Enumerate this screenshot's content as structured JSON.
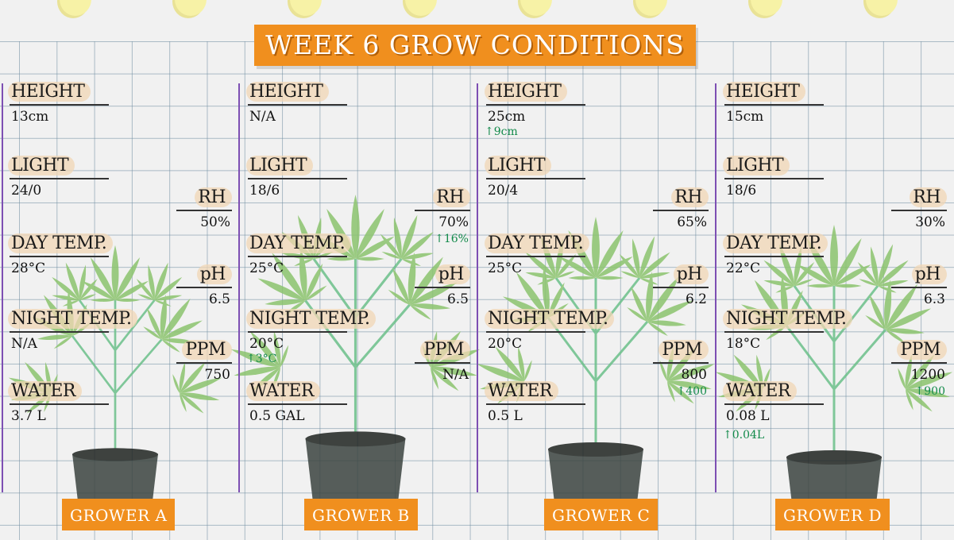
{
  "title": "WEEK 6 GROW CONDITIONS",
  "colors": {
    "accent": "#f08f1e",
    "divider": "#7d4fb3",
    "delta": "#128a4a",
    "pin": "#f7f2a6"
  },
  "columns": [
    {
      "grower": "GROWER A",
      "left": [
        {
          "label": "HEIGHT",
          "value": "13cm",
          "delta": ""
        },
        {
          "label": "LIGHT",
          "value": "24/0",
          "delta": ""
        },
        {
          "label": "DAY TEMP.",
          "value": "28°C",
          "delta": ""
        },
        {
          "label": "NIGHT TEMP.",
          "value": "N/A",
          "delta": ""
        },
        {
          "label": "WATER",
          "value": "3.7 L",
          "delta": ""
        }
      ],
      "right": [
        {
          "label": "RH",
          "value": "50%",
          "delta": ""
        },
        {
          "label": "pH",
          "value": "6.5",
          "delta": ""
        },
        {
          "label": "PPM",
          "value": "750",
          "delta": ""
        }
      ]
    },
    {
      "grower": "GROWER B",
      "left": [
        {
          "label": "HEIGHT",
          "value": "N/A",
          "delta": ""
        },
        {
          "label": "LIGHT",
          "value": "18/6",
          "delta": ""
        },
        {
          "label": "DAY TEMP.",
          "value": "25°C",
          "delta": ""
        },
        {
          "label": "NIGHT TEMP.",
          "value": "20°C",
          "delta": "↑3°C"
        },
        {
          "label": "WATER",
          "value": "0.5 GAL",
          "delta": ""
        }
      ],
      "right": [
        {
          "label": "RH",
          "value": "70%",
          "delta": "↑16%"
        },
        {
          "label": "pH",
          "value": "6.5",
          "delta": ""
        },
        {
          "label": "PPM",
          "value": "N/A",
          "delta": ""
        }
      ]
    },
    {
      "grower": "GROWER C",
      "left": [
        {
          "label": "HEIGHT",
          "value": "25cm",
          "delta": "↑9cm"
        },
        {
          "label": "LIGHT",
          "value": "20/4",
          "delta": ""
        },
        {
          "label": "DAY TEMP.",
          "value": "25°C",
          "delta": ""
        },
        {
          "label": "NIGHT TEMP.",
          "value": "20°C",
          "delta": ""
        },
        {
          "label": "WATER",
          "value": "0.5 L",
          "delta": ""
        }
      ],
      "right": [
        {
          "label": "RH",
          "value": "65%",
          "delta": ""
        },
        {
          "label": "pH",
          "value": "6.2",
          "delta": ""
        },
        {
          "label": "PPM",
          "value": "800",
          "delta": "↑400"
        }
      ]
    },
    {
      "grower": "GROWER D",
      "left": [
        {
          "label": "HEIGHT",
          "value": "15cm",
          "delta": ""
        },
        {
          "label": "LIGHT",
          "value": "18/6",
          "delta": ""
        },
        {
          "label": "DAY TEMP.",
          "value": "22°C",
          "delta": ""
        },
        {
          "label": "NIGHT TEMP.",
          "value": "18°C",
          "delta": ""
        },
        {
          "label": "WATER",
          "value": "0.08 L",
          "delta": "↑0.04L"
        }
      ],
      "right": [
        {
          "label": "RH",
          "value": "30%",
          "delta": ""
        },
        {
          "label": "pH",
          "value": "6.3",
          "delta": ""
        },
        {
          "label": "PPM",
          "value": "1200",
          "delta": "↑900"
        }
      ]
    }
  ]
}
